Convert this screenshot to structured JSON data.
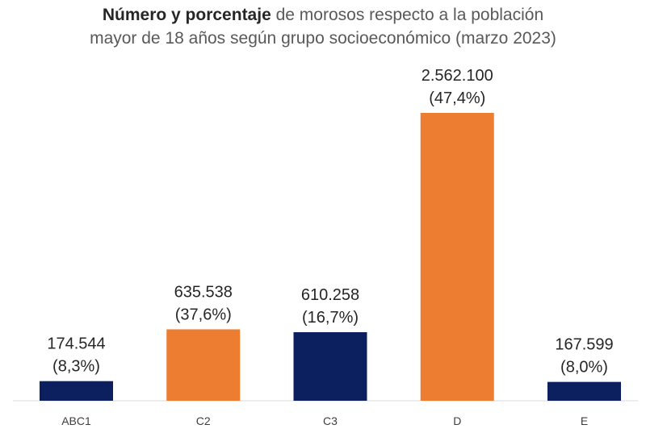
{
  "chart_data": {
    "type": "bar",
    "title_bold": "Número y porcentaje",
    "title_rest_line1": " de morosos respecto a la población",
    "title_line2": "mayor de 18 años según grupo socioeconómico (marzo 2023)",
    "xlabel": "",
    "ylabel": "",
    "ylim": [
      0,
      2562100
    ],
    "grid": false,
    "categories": [
      "ABC1",
      "C2",
      "C3",
      "D",
      "E"
    ],
    "values": [
      174544,
      635538,
      610258,
      2562100,
      167599
    ],
    "value_labels": [
      "174.544",
      "635.538",
      "610.258",
      "2.562.100",
      "167.599"
    ],
    "percent_labels": [
      "(8,3%)",
      "(37,6%)",
      "(16,7%)",
      "(47,4%)",
      "(8,0%)"
    ],
    "colors": [
      "#0c1f5e",
      "#ed7d31",
      "#0c1f5e",
      "#ed7d31",
      "#0c1f5e"
    ]
  }
}
